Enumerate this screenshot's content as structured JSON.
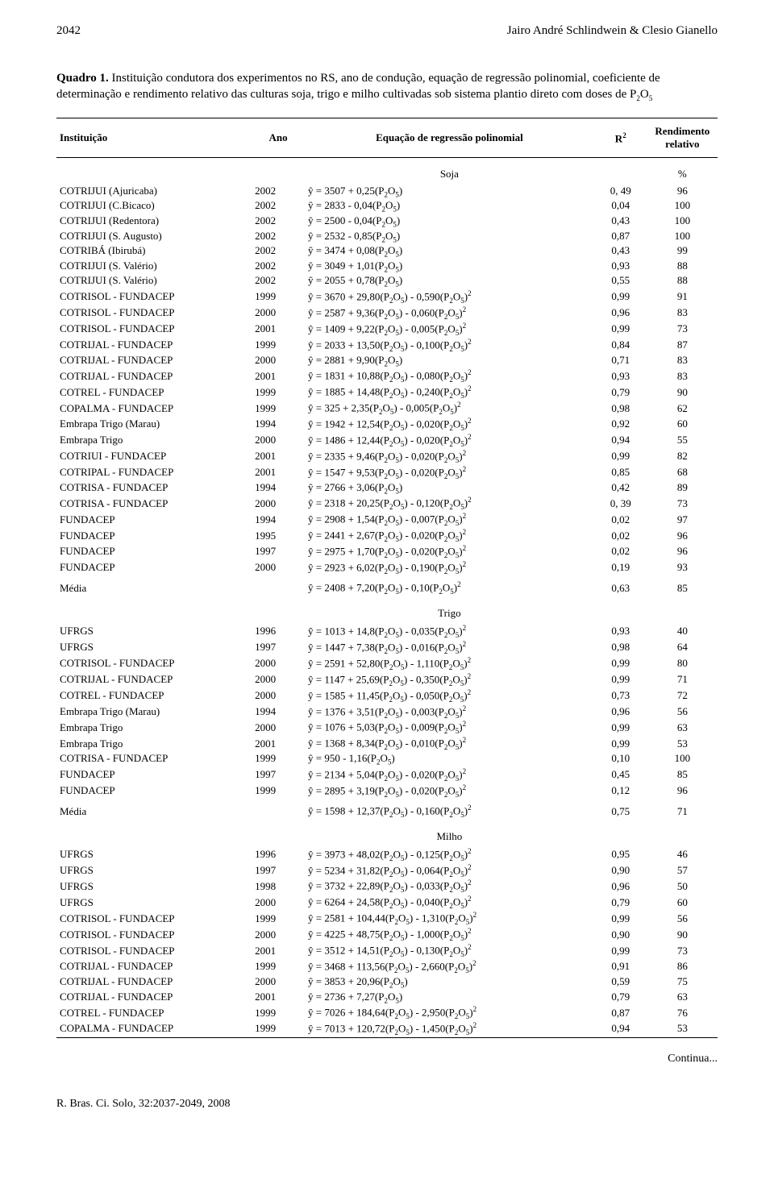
{
  "header": {
    "page_number": "2042",
    "authors": "Jairo André Schlindwein & Clesio Gianello"
  },
  "quadro": {
    "label_bold": "Quadro 1.",
    "title_rest": " Instituição condutora dos experimentos no RS, ano de condução, equação de regressão polinomial, coeficiente de determinação e rendimento relativo das culturas soja, trigo e milho cultivadas sob sistema plantio direto com doses de P",
    "p2o5_sub": "2",
    "p2o5_o": "O",
    "p2o5_sub2": "5"
  },
  "columns": {
    "instituicao": "Instituição",
    "ano": "Ano",
    "equacao": "Equação de regressão polinomial",
    "r2": "R",
    "r2_sup": "2",
    "rend": "Rendimento relativo"
  },
  "sections": [
    {
      "name": "Soja",
      "pct": "%",
      "rows": [
        {
          "inst": "COTRIJUI (Ajuricaba)",
          "ano": "2002",
          "eq": "ŷ  = 3507 + 0,25(P₂O₅)",
          "r2": "0, 49",
          "rel": "96"
        },
        {
          "inst": "COTRIJUI (C.Bicaco)",
          "ano": "2002",
          "eq": "ŷ  = 2833 - 0,04(P₂O₅)",
          "r2": "0,04",
          "rel": "100"
        },
        {
          "inst": "COTRIJUI (Redentora)",
          "ano": "2002",
          "eq": "ŷ  = 2500 - 0,04(P₂O₅)",
          "r2": "0,43",
          "rel": "100"
        },
        {
          "inst": "COTRIJUI (S. Augusto)",
          "ano": "2002",
          "eq": "ŷ  = 2532 - 0,85(P₂O₅)",
          "r2": "0,87",
          "rel": "100"
        },
        {
          "inst": "COTRIBÁ (Ibirubá)",
          "ano": "2002",
          "eq": "ŷ  = 3474 + 0,08(P₂O₅)",
          "r2": "0,43",
          "rel": "99"
        },
        {
          "inst": "COTRIJUI (S. Valério)",
          "ano": "2002",
          "eq": "ŷ  = 3049 + 1,01(P₂O₅)",
          "r2": "0,93",
          "rel": "88"
        },
        {
          "inst": "COTRIJUI (S. Valério)",
          "ano": "2002",
          "eq": "ŷ  = 2055 + 0,78(P₂O₅)",
          "r2": "0,55",
          "rel": "88"
        },
        {
          "inst": "COTRISOL - FUNDACEP",
          "ano": "1999",
          "eq": "ŷ  = 3670 + 29,80(P₂O₅)  - 0,590(P₂O₅)²",
          "r2": "0,99",
          "rel": "91"
        },
        {
          "inst": "COTRISOL - FUNDACEP",
          "ano": "2000",
          "eq": "ŷ  = 2587 + 9,36(P₂O₅)  - 0,060(P₂O₅)²",
          "r2": "0,96",
          "rel": "83"
        },
        {
          "inst": "COTRISOL - FUNDACEP",
          "ano": "2001",
          "eq": "ŷ  = 1409 + 9,22(P₂O₅)  - 0,005(P₂O₅)²",
          "r2": "0,99",
          "rel": "73"
        },
        {
          "inst": "COTRIJAL - FUNDACEP",
          "ano": "1999",
          "eq": "ŷ  = 2033 + 13,50(P₂O₅)  - 0,100(P₂O₅)²",
          "r2": "0,84",
          "rel": "87"
        },
        {
          "inst": "COTRIJAL - FUNDACEP",
          "ano": "2000",
          "eq": "ŷ  = 2881 + 9,90(P₂O₅)",
          "r2": "0,71",
          "rel": "83"
        },
        {
          "inst": "COTRIJAL - FUNDACEP",
          "ano": "2001",
          "eq": "ŷ  = 1831 + 10,88(P₂O₅)  - 0,080(P₂O₅)²",
          "r2": "0,93",
          "rel": "83"
        },
        {
          "inst": "COTREL - FUNDACEP",
          "ano": "1999",
          "eq": "ŷ  = 1885 + 14,48(P₂O₅)  - 0,240(P₂O₅)²",
          "r2": "0,79",
          "rel": "90"
        },
        {
          "inst": "COPALMA - FUNDACEP",
          "ano": "1999",
          "eq": "ŷ  = 325 + 2,35(P₂O₅)  - 0,005(P₂O₅)²",
          "r2": "0,98",
          "rel": "62"
        },
        {
          "inst": "Embrapa Trigo (Marau)",
          "ano": "1994",
          "eq": "ŷ  = 1942 + 12,54(P₂O₅)  - 0,020(P₂O₅)²",
          "r2": "0,92",
          "rel": "60"
        },
        {
          "inst": "Embrapa Trigo",
          "ano": "2000",
          "eq": "ŷ  = 1486 + 12,44(P₂O₅)  - 0,020(P₂O₅)²",
          "r2": "0,94",
          "rel": "55"
        },
        {
          "inst": "COTRIUI - FUNDACEP",
          "ano": "2001",
          "eq": "ŷ  = 2335 + 9,46(P₂O₅)  - 0,020(P₂O₅)²",
          "r2": "0,99",
          "rel": "82"
        },
        {
          "inst": "COTRIPAL - FUNDACEP",
          "ano": "2001",
          "eq": "ŷ  = 1547 + 9,53(P₂O₅)  - 0,020(P₂O₅)²",
          "r2": "0,85",
          "rel": "68"
        },
        {
          "inst": "COTRISA - FUNDACEP",
          "ano": "1994",
          "eq": "ŷ  = 2766 + 3,06(P₂O₅)",
          "r2": "0,42",
          "rel": "89"
        },
        {
          "inst": "COTRISA - FUNDACEP",
          "ano": "2000",
          "eq": "ŷ  = 2318 + 20,25(P₂O₅)  - 0,120(P₂O₅)²",
          "r2": "0, 39",
          "rel": "73"
        },
        {
          "inst": "FUNDACEP",
          "ano": "1994",
          "eq": "ŷ  = 2908 + 1,54(P₂O₅)  - 0,007(P₂O₅)²",
          "r2": "0,02",
          "rel": "97"
        },
        {
          "inst": "FUNDACEP",
          "ano": "1995",
          "eq": "ŷ  = 2441 + 2,67(P₂O₅)  - 0,020(P₂O₅)²",
          "r2": "0,02",
          "rel": "96"
        },
        {
          "inst": "FUNDACEP",
          "ano": "1997",
          "eq": "ŷ  = 2975 + 1,70(P₂O₅)  - 0,020(P₂O₅)²",
          "r2": "0,02",
          "rel": "96"
        },
        {
          "inst": "FUNDACEP",
          "ano": "2000",
          "eq": "ŷ  = 2923 + 6,02(P₂O₅)  - 0,190(P₂O₅)²",
          "r2": "0,19",
          "rel": "93"
        }
      ],
      "media": {
        "inst": "Média",
        "eq": "ŷ  = 2408 + 7,20(P₂O₅)  - 0,10(P₂O₅)²",
        "r2": "0,63",
        "rel": "85"
      }
    },
    {
      "name": "Trigo",
      "rows": [
        {
          "inst": "UFRGS",
          "ano": "1996",
          "eq": "ŷ  = 1013 + 14,8(P₂O₅)  - 0,035(P₂O₅)²",
          "r2": "0,93",
          "rel": "40"
        },
        {
          "inst": "UFRGS",
          "ano": "1997",
          "eq": "ŷ  = 1447 + 7,38(P₂O₅)  - 0,016(P₂O₅)²",
          "r2": "0,98",
          "rel": "64"
        },
        {
          "inst": "COTRISOL - FUNDACEP",
          "ano": "2000",
          "eq": "ŷ  = 2591 + 52,80(P₂O₅)  - 1,110(P₂O₅)²",
          "r2": "0,99",
          "rel": "80"
        },
        {
          "inst": "COTRIJAL - FUNDACEP",
          "ano": "2000",
          "eq": "ŷ  = 1147 + 25,69(P₂O₅)  - 0,350(P₂O₅)²",
          "r2": "0,99",
          "rel": "71"
        },
        {
          "inst": "COTREL - FUNDACEP",
          "ano": "2000",
          "eq": "ŷ  = 1585 + 11,45(P₂O₅)  - 0,050(P₂O₅)²",
          "r2": "0,73",
          "rel": "72"
        },
        {
          "inst": "Embrapa Trigo (Marau)",
          "ano": "1994",
          "eq": "ŷ  = 1376 + 3,51(P₂O₅)  - 0,003(P₂O₅)²",
          "r2": "0,96",
          "rel": "56"
        },
        {
          "inst": "Embrapa Trigo",
          "ano": "2000",
          "eq": "ŷ  = 1076 + 5,03(P₂O₅)  - 0,009(P₂O₅)²",
          "r2": "0,99",
          "rel": "63"
        },
        {
          "inst": "Embrapa Trigo",
          "ano": "2001",
          "eq": "ŷ  = 1368 + 8,34(P₂O₅)  - 0,010(P₂O₅)²",
          "r2": "0,99",
          "rel": "53"
        },
        {
          "inst": "COTRISA - FUNDACEP",
          "ano": "1999",
          "eq": "ŷ  = 950  - 1,16(P₂O₅)",
          "r2": "0,10",
          "rel": "100"
        },
        {
          "inst": "FUNDACEP",
          "ano": "1997",
          "eq": "ŷ  = 2134 + 5,04(P₂O₅)  - 0,020(P₂O₅)²",
          "r2": "0,45",
          "rel": "85"
        },
        {
          "inst": "FUNDACEP",
          "ano": "1999",
          "eq": "ŷ  = 2895 + 3,19(P₂O₅)  - 0,020(P₂O₅)²",
          "r2": "0,12",
          "rel": "96"
        }
      ],
      "media": {
        "inst": "Média",
        "eq": "ŷ  = 1598   + 12,37(P₂O₅)  - 0,160(P₂O₅)²",
        "r2": "0,75",
        "rel": "71"
      }
    },
    {
      "name": "Milho",
      "rows": [
        {
          "inst": "UFRGS",
          "ano": "1996",
          "eq": "ŷ  = 3973 + 48,02(P₂O₅)  - 0,125(P₂O₅)²",
          "r2": "0,95",
          "rel": "46"
        },
        {
          "inst": "UFRGS",
          "ano": "1997",
          "eq": "ŷ  = 5234 + 31,82(P₂O₅)  - 0,064(P₂O₅)²",
          "r2": "0,90",
          "rel": "57"
        },
        {
          "inst": "UFRGS",
          "ano": "1998",
          "eq": "ŷ  = 3732 + 22,89(P₂O₅)  - 0,033(P₂O₅)²",
          "r2": "0,96",
          "rel": "50"
        },
        {
          "inst": "UFRGS",
          "ano": "2000",
          "eq": "ŷ  = 6264 + 24,58(P₂O₅)  - 0,040(P₂O₅)²",
          "r2": "0,79",
          "rel": "60"
        },
        {
          "inst": "COTRISOL - FUNDACEP",
          "ano": "1999",
          "eq": "ŷ  = 2581 + 104,44(P₂O₅)  - 1,310(P₂O₅)²",
          "r2": "0,99",
          "rel": "56"
        },
        {
          "inst": "COTRISOL - FUNDACEP",
          "ano": "2000",
          "eq": "ŷ  = 4225 + 48,75(P₂O₅)  - 1,000(P₂O₅)²",
          "r2": "0,90",
          "rel": "90"
        },
        {
          "inst": "COTRISOL - FUNDACEP",
          "ano": "2001",
          "eq": "ŷ  = 3512 + 14,51(P₂O₅)  - 0,130(P₂O₅)²",
          "r2": "0,99",
          "rel": "73"
        },
        {
          "inst": "COTRIJAL - FUNDACEP",
          "ano": "1999",
          "eq": "ŷ  = 3468 + 113,56(P₂O₅)  - 2,660(P₂O₅)²",
          "r2": "0,91",
          "rel": "86"
        },
        {
          "inst": "COTRIJAL - FUNDACEP",
          "ano": "2000",
          "eq": "ŷ  = 3853 + 20,96(P₂O₅)",
          "r2": "0,59",
          "rel": "75"
        },
        {
          "inst": "COTRIJAL - FUNDACEP",
          "ano": "2001",
          "eq": "ŷ  = 2736 + 7,27(P₂O₅)",
          "r2": "0,79",
          "rel": "63"
        },
        {
          "inst": "COTREL - FUNDACEP",
          "ano": "1999",
          "eq": "ŷ  = 7026 + 184,64(P₂O₅)  - 2,950(P₂O₅)²",
          "r2": "0,87",
          "rel": "76"
        },
        {
          "inst": "COPALMA - FUNDACEP",
          "ano": "1999",
          "eq": "ŷ  = 7013   + 120,72(P₂O₅)  - 1,450(P₂O₅)²",
          "r2": "0,94",
          "rel": "53"
        }
      ]
    }
  ],
  "continua": "Continua...",
  "footer": "R. Bras. Ci. Solo, 32:2037-2049, 2008"
}
